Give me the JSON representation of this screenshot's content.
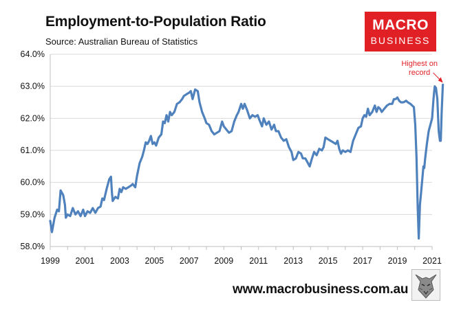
{
  "header": {
    "title": "Employment-to-Population Ratio",
    "subtitle": "Source: Australian Bureau of Statistics"
  },
  "logo": {
    "line1": "MACRO",
    "line2": "BUSINESS"
  },
  "footer": {
    "website": "www.macrobusiness.com.au"
  },
  "colors": {
    "line": "#4f81bd",
    "annotation": "#e12026",
    "grid": "#d9d9d9",
    "logo_bg": "#e12026"
  },
  "chart_data": {
    "type": "line",
    "title": "Employment-to-Population Ratio",
    "subtitle": "Source: Australian Bureau of Statistics",
    "xlabel": "",
    "ylabel": "",
    "xlim": [
      1999,
      2021
    ],
    "ylim": [
      58.0,
      64.0
    ],
    "x_ticks": [
      1999,
      2001,
      2003,
      2005,
      2007,
      2009,
      2011,
      2013,
      2015,
      2017,
      2019,
      2021
    ],
    "x_tick_labels": [
      "1999",
      "2001",
      "2003",
      "2005",
      "2007",
      "2009",
      "2011",
      "2013",
      "2015",
      "2017",
      "2019",
      "2021"
    ],
    "y_ticks": [
      58,
      59,
      60,
      61,
      62,
      63,
      64
    ],
    "y_tick_labels": [
      "58.0%",
      "59.0%",
      "60.0%",
      "61.0%",
      "62.0%",
      "63.0%",
      "64.0%"
    ],
    "grid": "horizontal",
    "legend": "none",
    "annotations": [
      {
        "text_lines": [
          "Highest on",
          "record"
        ],
        "x": 2021.0,
        "y": 63.05,
        "color": "#e12026"
      }
    ],
    "series": [
      {
        "color": "#4f81bd",
        "points": [
          [
            1999.0,
            58.8
          ],
          [
            1999.1,
            58.45
          ],
          [
            1999.25,
            58.9
          ],
          [
            1999.4,
            59.15
          ],
          [
            1999.5,
            59.1
          ],
          [
            1999.6,
            59.75
          ],
          [
            1999.75,
            59.6
          ],
          [
            1999.85,
            59.3
          ],
          [
            1999.9,
            58.9
          ],
          [
            2000.0,
            59.0
          ],
          [
            2000.15,
            58.95
          ],
          [
            2000.3,
            59.2
          ],
          [
            2000.45,
            59.0
          ],
          [
            2000.6,
            59.1
          ],
          [
            2000.75,
            58.95
          ],
          [
            2000.9,
            59.15
          ],
          [
            2001.0,
            58.95
          ],
          [
            2001.15,
            59.1
          ],
          [
            2001.3,
            59.05
          ],
          [
            2001.45,
            59.2
          ],
          [
            2001.6,
            59.05
          ],
          [
            2001.75,
            59.2
          ],
          [
            2001.9,
            59.25
          ],
          [
            2002.0,
            59.5
          ],
          [
            2002.1,
            59.45
          ],
          [
            2002.25,
            59.8
          ],
          [
            2002.4,
            60.1
          ],
          [
            2002.5,
            60.18
          ],
          [
            2002.55,
            59.7
          ],
          [
            2002.6,
            59.42
          ],
          [
            2002.75,
            59.55
          ],
          [
            2002.9,
            59.5
          ],
          [
            2003.0,
            59.8
          ],
          [
            2003.1,
            59.7
          ],
          [
            2003.2,
            59.85
          ],
          [
            2003.35,
            59.8
          ],
          [
            2003.5,
            59.85
          ],
          [
            2003.65,
            59.9
          ],
          [
            2003.75,
            59.95
          ],
          [
            2003.9,
            59.85
          ],
          [
            2004.0,
            60.2
          ],
          [
            2004.15,
            60.6
          ],
          [
            2004.3,
            60.8
          ],
          [
            2004.4,
            61.0
          ],
          [
            2004.5,
            61.25
          ],
          [
            2004.6,
            61.2
          ],
          [
            2004.7,
            61.3
          ],
          [
            2004.8,
            61.45
          ],
          [
            2004.9,
            61.2
          ],
          [
            2005.0,
            61.25
          ],
          [
            2005.1,
            61.15
          ],
          [
            2005.25,
            61.4
          ],
          [
            2005.4,
            61.5
          ],
          [
            2005.5,
            61.9
          ],
          [
            2005.6,
            61.85
          ],
          [
            2005.7,
            62.1
          ],
          [
            2005.8,
            61.9
          ],
          [
            2005.9,
            62.2
          ],
          [
            2006.0,
            62.1
          ],
          [
            2006.15,
            62.2
          ],
          [
            2006.3,
            62.45
          ],
          [
            2006.45,
            62.5
          ],
          [
            2006.6,
            62.6
          ],
          [
            2006.7,
            62.7
          ],
          [
            2006.85,
            62.75
          ],
          [
            2007.0,
            62.8
          ],
          [
            2007.1,
            62.85
          ],
          [
            2007.2,
            62.6
          ],
          [
            2007.35,
            62.9
          ],
          [
            2007.5,
            62.85
          ],
          [
            2007.6,
            62.5
          ],
          [
            2007.75,
            62.2
          ],
          [
            2007.9,
            62.0
          ],
          [
            2008.0,
            61.85
          ],
          [
            2008.15,
            61.8
          ],
          [
            2008.3,
            61.6
          ],
          [
            2008.45,
            61.5
          ],
          [
            2008.6,
            61.55
          ],
          [
            2008.75,
            61.6
          ],
          [
            2008.9,
            61.9
          ],
          [
            2009.0,
            61.75
          ],
          [
            2009.15,
            61.65
          ],
          [
            2009.3,
            61.55
          ],
          [
            2009.45,
            61.6
          ],
          [
            2009.6,
            61.9
          ],
          [
            2009.75,
            62.1
          ],
          [
            2009.85,
            62.2
          ],
          [
            2010.0,
            62.45
          ],
          [
            2010.1,
            62.3
          ],
          [
            2010.2,
            62.45
          ],
          [
            2010.35,
            62.25
          ],
          [
            2010.5,
            62.0
          ],
          [
            2010.65,
            62.1
          ],
          [
            2010.8,
            62.05
          ],
          [
            2010.95,
            62.1
          ],
          [
            2011.05,
            61.95
          ],
          [
            2011.2,
            61.75
          ],
          [
            2011.3,
            62.0
          ],
          [
            2011.45,
            61.8
          ],
          [
            2011.6,
            61.9
          ],
          [
            2011.75,
            61.65
          ],
          [
            2011.9,
            61.8
          ],
          [
            2012.0,
            61.6
          ],
          [
            2012.15,
            61.6
          ],
          [
            2012.3,
            61.4
          ],
          [
            2012.45,
            61.3
          ],
          [
            2012.6,
            61.35
          ],
          [
            2012.75,
            61.1
          ],
          [
            2012.9,
            60.95
          ],
          [
            2013.0,
            60.7
          ],
          [
            2013.15,
            60.75
          ],
          [
            2013.3,
            60.95
          ],
          [
            2013.45,
            60.9
          ],
          [
            2013.55,
            60.75
          ],
          [
            2013.7,
            60.75
          ],
          [
            2013.85,
            60.6
          ],
          [
            2013.95,
            60.5
          ],
          [
            2014.05,
            60.7
          ],
          [
            2014.2,
            60.95
          ],
          [
            2014.35,
            60.85
          ],
          [
            2014.5,
            61.05
          ],
          [
            2014.65,
            61.0
          ],
          [
            2014.75,
            61.1
          ],
          [
            2014.85,
            61.4
          ],
          [
            2015.0,
            61.35
          ],
          [
            2015.15,
            61.3
          ],
          [
            2015.3,
            61.25
          ],
          [
            2015.45,
            61.2
          ],
          [
            2015.55,
            61.3
          ],
          [
            2015.65,
            61.05
          ],
          [
            2015.75,
            60.9
          ],
          [
            2015.85,
            61.0
          ],
          [
            2016.0,
            60.95
          ],
          [
            2016.15,
            61.0
          ],
          [
            2016.3,
            60.95
          ],
          [
            2016.45,
            61.3
          ],
          [
            2016.6,
            61.5
          ],
          [
            2016.75,
            61.7
          ],
          [
            2016.9,
            61.75
          ],
          [
            2017.0,
            62.0
          ],
          [
            2017.1,
            62.1
          ],
          [
            2017.2,
            62.05
          ],
          [
            2017.3,
            62.3
          ],
          [
            2017.4,
            62.1
          ],
          [
            2017.55,
            62.2
          ],
          [
            2017.7,
            62.4
          ],
          [
            2017.8,
            62.2
          ],
          [
            2017.9,
            62.35
          ],
          [
            2018.0,
            62.3
          ],
          [
            2018.1,
            62.2
          ],
          [
            2018.25,
            62.3
          ],
          [
            2018.4,
            62.4
          ],
          [
            2018.55,
            62.45
          ],
          [
            2018.7,
            62.45
          ],
          [
            2018.8,
            62.6
          ],
          [
            2018.9,
            62.6
          ],
          [
            2019.0,
            62.65
          ],
          [
            2019.1,
            62.55
          ],
          [
            2019.2,
            62.5
          ],
          [
            2019.35,
            62.5
          ],
          [
            2019.5,
            62.55
          ],
          [
            2019.6,
            62.5
          ],
          [
            2019.75,
            62.45
          ],
          [
            2019.95,
            62.35
          ],
          [
            2020.03,
            61.8
          ],
          [
            2020.1,
            60.8
          ],
          [
            2020.17,
            59.2
          ],
          [
            2020.23,
            58.25
          ],
          [
            2020.3,
            59.3
          ],
          [
            2020.4,
            59.9
          ],
          [
            2020.5,
            60.5
          ],
          [
            2020.55,
            60.45
          ],
          [
            2020.6,
            60.75
          ],
          [
            2020.7,
            61.2
          ],
          [
            2020.8,
            61.6
          ],
          [
            2020.9,
            61.8
          ],
          [
            2021.0,
            62.0
          ],
          [
            2021.08,
            62.6
          ],
          [
            2021.15,
            63.0
          ],
          [
            2021.22,
            62.95
          ],
          [
            2021.3,
            62.6
          ],
          [
            2021.38,
            61.6
          ],
          [
            2021.45,
            61.3
          ],
          [
            2021.5,
            61.3
          ],
          [
            2021.55,
            62.2
          ],
          [
            2021.62,
            63.05
          ]
        ]
      }
    ]
  }
}
